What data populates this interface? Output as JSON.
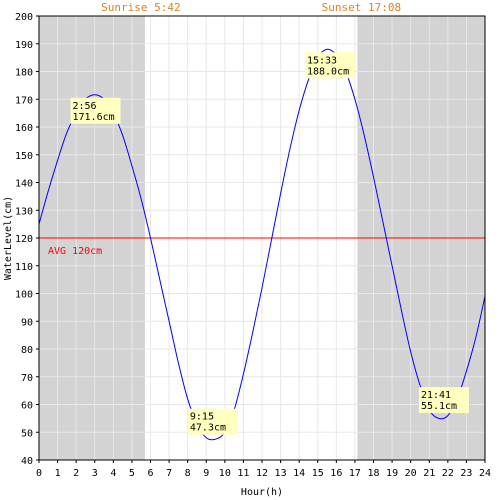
{
  "chart_data": {
    "type": "line",
    "title": "",
    "xlabel": "Hour(h)",
    "ylabel": "WaterLevel(cm)",
    "xlim": [
      0,
      24
    ],
    "ylim": [
      40,
      200
    ],
    "grid": true,
    "x_ticks": [
      "0",
      "1",
      "2",
      "3",
      "4",
      "5",
      "6",
      "7",
      "8",
      "9",
      "10",
      "11",
      "12",
      "13",
      "14",
      "15",
      "16",
      "17",
      "18",
      "19",
      "20",
      "21",
      "22",
      "23",
      "24"
    ],
    "y_ticks": [
      "40",
      "50",
      "60",
      "70",
      "80",
      "90",
      "100",
      "110",
      "120",
      "130",
      "140",
      "150",
      "160",
      "170",
      "180",
      "190",
      "200"
    ],
    "series": [
      {
        "color": "#0000ff",
        "x": [
          0,
          0.5,
          1,
          1.5,
          2,
          2.5,
          3,
          3.5,
          4,
          4.5,
          5,
          5.5,
          6,
          6.5,
          7,
          7.5,
          8,
          8.5,
          9,
          9.5,
          10,
          10.5,
          11,
          11.5,
          12,
          12.5,
          13,
          13.5,
          14,
          14.5,
          15,
          15.5,
          16,
          16.5,
          17,
          17.5,
          18,
          18.5,
          19,
          19.5,
          20,
          20.5,
          21,
          21.5,
          22,
          22.5,
          23,
          23.5,
          24
        ],
        "y": [
          125,
          137,
          148,
          158,
          165,
          170,
          171.6,
          170,
          165,
          157,
          146,
          134,
          120,
          105,
          90,
          75,
          62,
          53,
          48,
          47.5,
          50,
          58,
          71,
          86,
          102,
          119,
          136,
          152,
          166,
          177,
          185,
          188,
          186,
          180,
          170,
          157,
          142,
          126,
          110,
          94,
          79,
          67,
          58,
          55,
          56,
          62,
          72,
          84,
          99
        ]
      }
    ],
    "daylight": {
      "sunrise_hour": 5.7,
      "sunset_hour": 17.133,
      "sunrise_label": "Sunrise 5:42",
      "sunset_label": "Sunset 17:08",
      "night_color": "#d3d3d3",
      "label_color": "#e08020"
    },
    "average": {
      "value": 120,
      "label": "AVG 120cm",
      "color": "#ff0000"
    },
    "annotations": [
      {
        "x": 2.933,
        "y": 171.6,
        "time": "2:56",
        "level": "171.6cm",
        "position": "below"
      },
      {
        "x": 9.25,
        "y": 47.3,
        "time": "9:15",
        "level": "47.3cm",
        "position": "above"
      },
      {
        "x": 15.55,
        "y": 188.0,
        "time": "15:33",
        "level": "188.0cm",
        "position": "below"
      },
      {
        "x": 21.683,
        "y": 55.1,
        "time": "21:41",
        "level": "55.1cm",
        "position": "above"
      }
    ],
    "annotation_bg": "#ffffc0"
  }
}
